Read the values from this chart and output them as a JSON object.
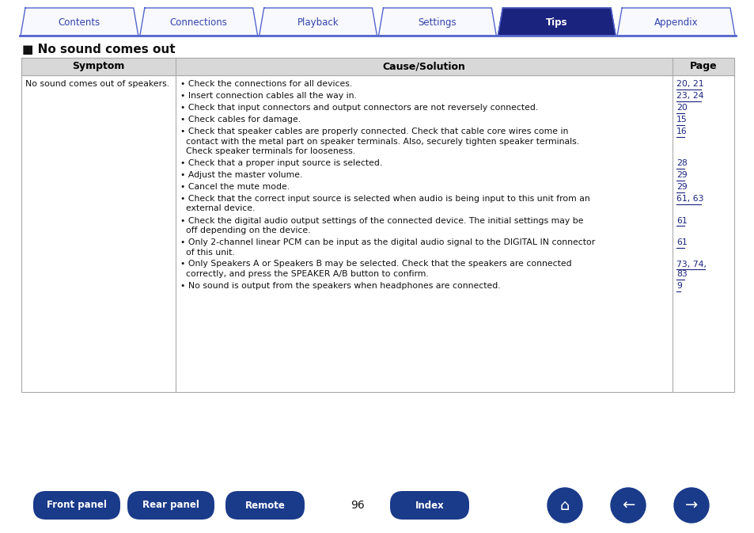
{
  "title": "No sound comes out",
  "page_number": "96",
  "nav_tabs": [
    "Contents",
    "Connections",
    "Playback",
    "Settings",
    "Tips",
    "Appendix"
  ],
  "active_tab_index": 4,
  "tab_active_bg": "#1a237e",
  "tab_inactive_bg": "#f8f8ff",
  "tab_border_color": "#5566cc",
  "tab_active_text": "#ffffff",
  "tab_inactive_text": "#3344aa",
  "table_header_cols": [
    "Symptom",
    "Cause/Solution",
    "Page"
  ],
  "table_header_bg": "#d8d8d8",
  "table_border_color": "#aaaaaa",
  "symptom_text": "No sound comes out of speakers.",
  "rows": [
    {
      "cause": "• Check the connections for all devices.",
      "page": "20, 21",
      "page2": ""
    },
    {
      "cause": "• Insert connection cables all the way in.",
      "page": "23, 24",
      "page2": ""
    },
    {
      "cause": "• Check that input connectors and output connectors are not reversely connected.",
      "page": "20",
      "page2": ""
    },
    {
      "cause": "• Check cables for damage.",
      "page": "15",
      "page2": ""
    },
    {
      "cause": "• Check that speaker cables are properly connected. Check that cable core wires come in",
      "cause2": "  contact with the metal part on speaker terminals. Also, securely tighten speaker terminals.",
      "cause3": "  Check speaker terminals for looseness.",
      "page": "16",
      "page2": "",
      "lines": 3
    },
    {
      "cause": "• Check that a proper input source is selected.",
      "page": "28",
      "page2": ""
    },
    {
      "cause": "• Adjust the master volume.",
      "page": "29",
      "page2": ""
    },
    {
      "cause": "• Cancel the mute mode.",
      "page": "29",
      "page2": ""
    },
    {
      "cause": "• Check that the correct input source is selected when audio is being input to this unit from an",
      "cause2": "  external device.",
      "page": "61, 63",
      "page2": "",
      "lines": 2
    },
    {
      "cause": "• Check the digital audio output settings of the connected device. The initial settings may be",
      "cause2": "  off depending on the device.",
      "page": "61",
      "page2": "",
      "lines": 2
    },
    {
      "cause": "• Only 2-channel linear PCM can be input as the digital audio signal to the DIGITAL IN connector",
      "cause2": "  of this unit.",
      "page": "61",
      "page2": "",
      "lines": 2
    },
    {
      "cause": "• Only Speakers A or Speakers B may be selected. Check that the speakers are connected",
      "cause2": "  correctly, and press the SPEAKER A/B button to confirm.",
      "page": "73, 74,",
      "page2": "83",
      "lines": 2
    },
    {
      "cause": "• No sound is output from the speakers when headphones are connected.",
      "page": "9",
      "page2": ""
    }
  ],
  "link_color": "#1a237e",
  "bg_color": "#ffffff",
  "btn_labels": [
    "Front panel",
    "Rear panel",
    "Remote",
    "Index"
  ],
  "btn_bg": "#1a3a8a",
  "btn_text": "#ffffff"
}
